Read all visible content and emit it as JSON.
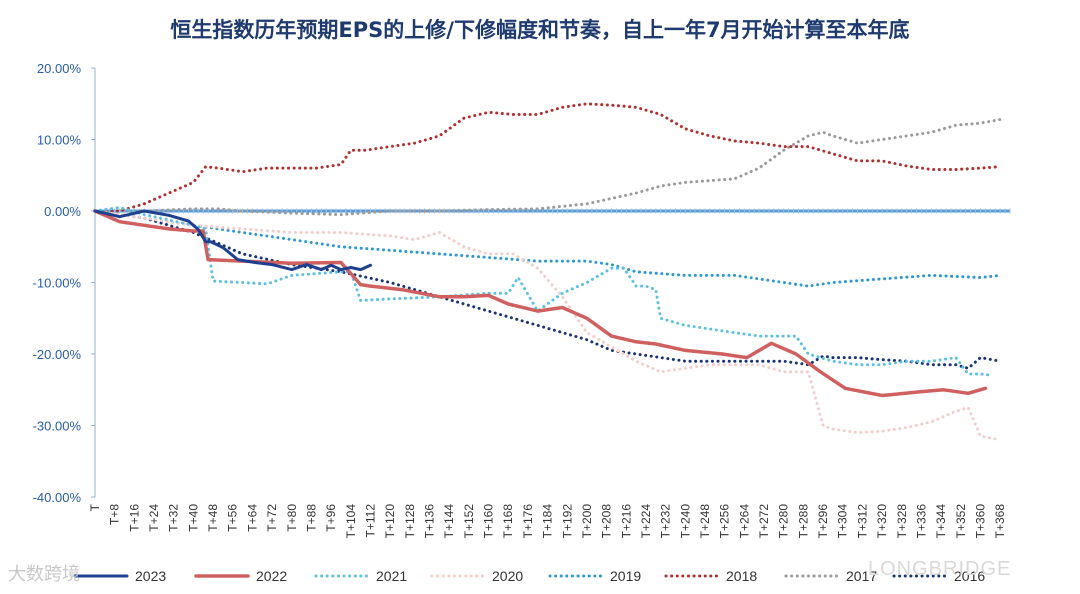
{
  "chart_data": {
    "type": "line",
    "title": "恒生指数历年预期EPS的上修/下修幅度和节奏，自上一年7月开始计算至本年底",
    "xlabel": "",
    "ylabel": "",
    "ylim": [
      -40,
      20
    ],
    "yticks": [
      20,
      10,
      0,
      -10,
      -20,
      -30,
      -40
    ],
    "ytick_labels": [
      "20.00%",
      "10.00%",
      "0.00%",
      "-10.00%",
      "-20.00%",
      "-30.00%",
      "-40.00%"
    ],
    "xlim": [
      0,
      372
    ],
    "xtick_labels": [
      "T",
      "T+8",
      "T+16",
      "T+24",
      "T+32",
      "T+40",
      "T+48",
      "T+56",
      "T+64",
      "T+72",
      "T+80",
      "T+88",
      "T+96",
      "T+104",
      "T+112",
      "T+120",
      "T+128",
      "T+136",
      "T+144",
      "T+152",
      "T+160",
      "T+168",
      "T+176",
      "T+184",
      "T+192",
      "T+200",
      "T+208",
      "T+216",
      "T+224",
      "T+232",
      "T+240",
      "T+248",
      "T+256",
      "T+264",
      "T+272",
      "T+280",
      "T+288",
      "T+296",
      "T+304",
      "T+312",
      "T+320",
      "T+328",
      "T+336",
      "T+344",
      "T+352",
      "T+360",
      "T+368"
    ],
    "legend_position": "bottom",
    "series": [
      {
        "name": "2023",
        "color": "#1f3f8f",
        "style": "solid",
        "width": 3,
        "x": [
          0,
          10,
          20,
          30,
          38,
          42,
          45,
          47,
          52,
          58,
          65,
          72,
          80,
          86,
          92,
          96,
          100,
          104,
          108,
          112
        ],
        "values": [
          0,
          -0.8,
          0,
          -0.6,
          -1.4,
          -2.6,
          -4.3,
          -4.3,
          -5.1,
          -6.8,
          -7.2,
          -7.5,
          -8.2,
          -7.5,
          -8.2,
          -7.6,
          -8.2,
          -7.9,
          -8.2,
          -7.6
        ]
      },
      {
        "name": "2022",
        "color": "#d06060",
        "style": "solid",
        "width": 3.5,
        "x": [
          0,
          10,
          20,
          30,
          40,
          44,
          46,
          60,
          80,
          100,
          108,
          112,
          125,
          140,
          150,
          160,
          168,
          180,
          190,
          200,
          210,
          220,
          228,
          240,
          255,
          265,
          275,
          285,
          295,
          305,
          320,
          335,
          345,
          355,
          362
        ],
        "values": [
          0,
          -1.5,
          -2,
          -2.5,
          -2.8,
          -2.8,
          -6.8,
          -7,
          -7.3,
          -7.2,
          -10.3,
          -10.5,
          -11,
          -12,
          -12,
          -11.8,
          -13,
          -14,
          -13.5,
          -15,
          -17.5,
          -18.3,
          -18.6,
          -19.5,
          -20,
          -20.5,
          -18.5,
          -20,
          -22.5,
          -24.8,
          -25.8,
          -25.3,
          -25,
          -25.5,
          -24.8
        ]
      },
      {
        "name": "2021",
        "color": "#5cc0e0",
        "style": "dotted",
        "width": 3,
        "x": [
          0,
          10,
          20,
          40,
          45,
          48,
          60,
          70,
          80,
          100,
          104,
          108,
          120,
          140,
          160,
          168,
          172,
          180,
          190,
          200,
          210,
          215,
          220,
          224,
          228,
          230,
          240,
          260,
          270,
          285,
          290,
          300,
          310,
          320,
          330,
          340,
          350,
          355,
          360,
          365
        ],
        "values": [
          0,
          0.5,
          -0.5,
          -2,
          -2.5,
          -9.8,
          -10,
          -10.2,
          -9,
          -8.5,
          -8.5,
          -12.5,
          -12.3,
          -12,
          -11.5,
          -11.5,
          -9.3,
          -14,
          -11.5,
          -10,
          -8,
          -8,
          -10.5,
          -10.5,
          -11,
          -15,
          -16,
          -17,
          -17.5,
          -17.5,
          -20,
          -21,
          -21.5,
          -21.5,
          -21,
          -21,
          -20.5,
          -22.8,
          -22.8,
          -23
        ]
      },
      {
        "name": "2020",
        "color": "#f4cccc",
        "style": "dotted",
        "width": 3,
        "x": [
          0,
          20,
          40,
          60,
          80,
          100,
          120,
          130,
          140,
          150,
          160,
          170,
          180,
          190,
          200,
          210,
          220,
          230,
          240,
          250,
          260,
          270,
          280,
          290,
          296,
          300,
          310,
          320,
          330,
          340,
          350,
          355,
          360,
          368
        ],
        "values": [
          0,
          -1,
          -2,
          -2.5,
          -3,
          -3,
          -3.5,
          -4,
          -3,
          -5,
          -6,
          -6,
          -8,
          -12,
          -17,
          -19,
          -21,
          -22.5,
          -22,
          -21.5,
          -21.5,
          -21.5,
          -22.5,
          -22.5,
          -30,
          -30.5,
          -31,
          -30.8,
          -30.3,
          -29.5,
          -28,
          -27.5,
          -31.5,
          -32
        ]
      },
      {
        "name": "2019",
        "color": "#2e99cc",
        "style": "dotted",
        "width": 3,
        "x": [
          0,
          20,
          40,
          60,
          80,
          100,
          120,
          140,
          160,
          180,
          200,
          210,
          220,
          240,
          260,
          270,
          280,
          290,
          300,
          320,
          340,
          360,
          368
        ],
        "values": [
          0,
          -1,
          -2,
          -3,
          -4,
          -5,
          -5.5,
          -6,
          -6.5,
          -7,
          -7,
          -7.5,
          -8.5,
          -9,
          -9,
          -9.5,
          -10,
          -10.5,
          -10,
          -9.5,
          -9,
          -9.3,
          -9
        ]
      },
      {
        "name": "2018",
        "color": "#b03030",
        "style": "dotted",
        "width": 3,
        "x": [
          0,
          10,
          20,
          30,
          40,
          45,
          50,
          60,
          70,
          80,
          90,
          100,
          104,
          110,
          120,
          130,
          140,
          150,
          160,
          170,
          180,
          190,
          200,
          210,
          220,
          230,
          240,
          250,
          260,
          270,
          280,
          290,
          300,
          310,
          320,
          330,
          340,
          350,
          360,
          368
        ],
        "values": [
          0,
          0,
          1,
          2.5,
          4,
          6.2,
          6,
          5.5,
          6,
          6,
          6,
          6.5,
          8.5,
          8.5,
          9,
          9.5,
          10.5,
          13,
          13.8,
          13.5,
          13.5,
          14.5,
          15,
          14.8,
          14.5,
          13.5,
          11.5,
          10.5,
          9.8,
          9.5,
          9,
          9,
          8,
          7,
          7,
          6.3,
          5.8,
          5.8,
          6,
          6.2
        ]
      },
      {
        "name": "2017",
        "color": "#9a9a9a",
        "style": "dotted",
        "width": 3,
        "x": [
          0,
          20,
          40,
          50,
          60,
          80,
          100,
          120,
          140,
          160,
          180,
          200,
          220,
          230,
          240,
          260,
          270,
          280,
          290,
          296,
          300,
          310,
          320,
          330,
          340,
          350,
          360,
          368
        ],
        "values": [
          0,
          0,
          0.3,
          0.3,
          0,
          -0.3,
          -0.5,
          0,
          0,
          0.2,
          0.3,
          1,
          2.5,
          3.5,
          4,
          4.5,
          6,
          8.5,
          10.5,
          11,
          10.5,
          9.5,
          10,
          10.5,
          11,
          12,
          12.3,
          12.8
        ]
      },
      {
        "name": "2016",
        "color": "#1a3478",
        "style": "dotted",
        "width": 3,
        "x": [
          0,
          20,
          40,
          60,
          80,
          100,
          120,
          140,
          160,
          180,
          200,
          210,
          220,
          240,
          260,
          280,
          290,
          296,
          300,
          310,
          320,
          330,
          340,
          350,
          355,
          360,
          368
        ],
        "values": [
          0,
          -1,
          -3,
          -6,
          -7.5,
          -8.5,
          -10,
          -12,
          -14,
          -16,
          -18,
          -19.5,
          -20,
          -21,
          -21,
          -21,
          -21.5,
          -20.3,
          -20.5,
          -20.5,
          -20.8,
          -21,
          -21.5,
          -21.5,
          -22,
          -20.5,
          -21
        ]
      }
    ]
  },
  "watermarks": {
    "left": "大数跨境",
    "right": "LONGBRIDGE"
  }
}
